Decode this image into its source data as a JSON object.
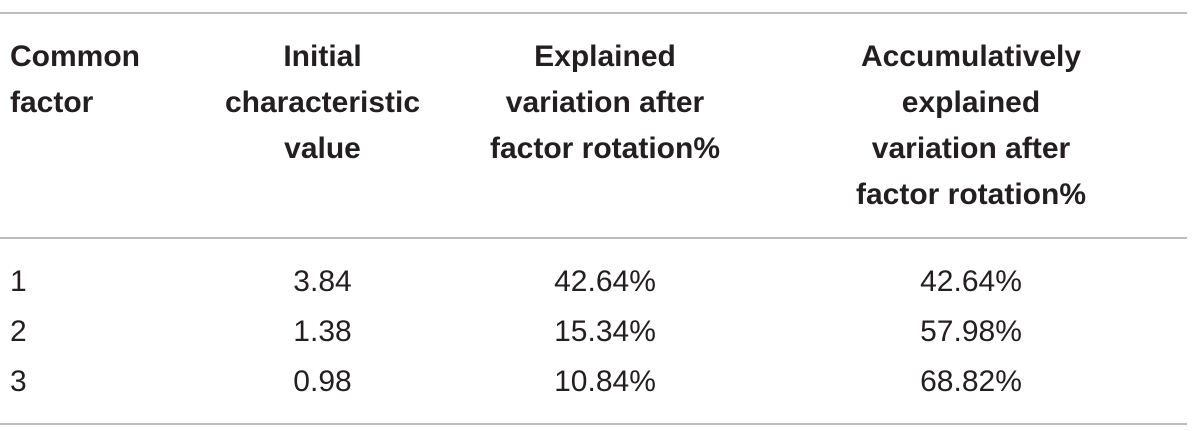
{
  "table": {
    "headers": [
      [
        "Common",
        "factor"
      ],
      [
        "Initial",
        "characteristic",
        "value"
      ],
      [
        "Explained",
        "variation after",
        "factor rotation%"
      ],
      [
        "Accumulatively",
        "explained",
        "variation after",
        "factor rotation%"
      ]
    ],
    "rows": [
      [
        "1",
        "3.84",
        "42.64%",
        "42.64%"
      ],
      [
        "2",
        "1.38",
        "15.34%",
        "57.98%"
      ],
      [
        "3",
        "0.98",
        "10.84%",
        "68.82%"
      ]
    ]
  }
}
